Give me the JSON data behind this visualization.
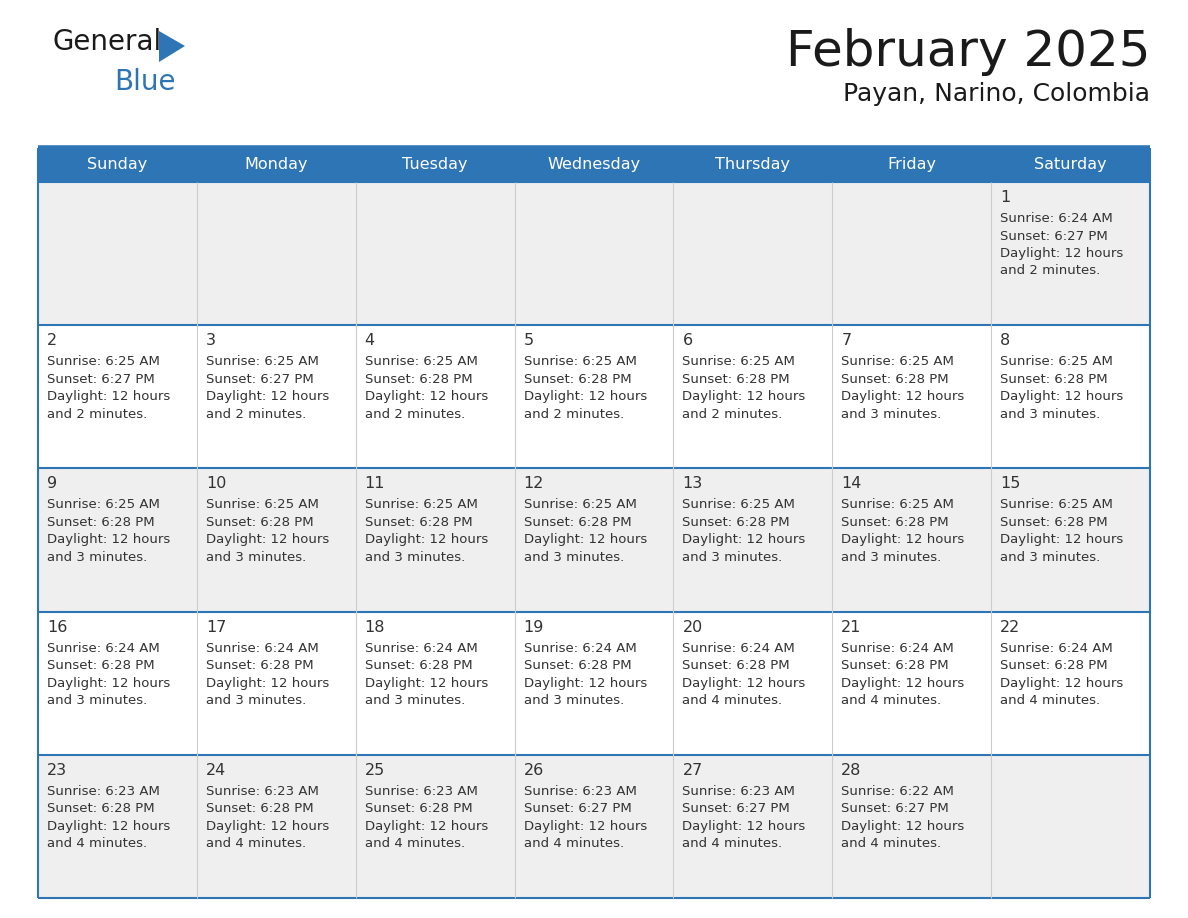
{
  "title": "February 2025",
  "subtitle": "Payan, Narino, Colombia",
  "days_of_week": [
    "Sunday",
    "Monday",
    "Tuesday",
    "Wednesday",
    "Thursday",
    "Friday",
    "Saturday"
  ],
  "header_bg": "#2e75b6",
  "header_text_color": "#ffffff",
  "cell_bg_light": "#efefef",
  "cell_bg_white": "#ffffff",
  "divider_color": "#2e75b6",
  "text_color": "#333333",
  "calendar_data": [
    [
      null,
      null,
      null,
      null,
      null,
      null,
      {
        "day": 1,
        "sunrise": "6:24 AM",
        "sunset": "6:27 PM",
        "daylight": "12 hours and 2 minutes."
      }
    ],
    [
      {
        "day": 2,
        "sunrise": "6:25 AM",
        "sunset": "6:27 PM",
        "daylight": "12 hours and 2 minutes."
      },
      {
        "day": 3,
        "sunrise": "6:25 AM",
        "sunset": "6:27 PM",
        "daylight": "12 hours and 2 minutes."
      },
      {
        "day": 4,
        "sunrise": "6:25 AM",
        "sunset": "6:28 PM",
        "daylight": "12 hours and 2 minutes."
      },
      {
        "day": 5,
        "sunrise": "6:25 AM",
        "sunset": "6:28 PM",
        "daylight": "12 hours and 2 minutes."
      },
      {
        "day": 6,
        "sunrise": "6:25 AM",
        "sunset": "6:28 PM",
        "daylight": "12 hours and 2 minutes."
      },
      {
        "day": 7,
        "sunrise": "6:25 AM",
        "sunset": "6:28 PM",
        "daylight": "12 hours and 3 minutes."
      },
      {
        "day": 8,
        "sunrise": "6:25 AM",
        "sunset": "6:28 PM",
        "daylight": "12 hours and 3 minutes."
      }
    ],
    [
      {
        "day": 9,
        "sunrise": "6:25 AM",
        "sunset": "6:28 PM",
        "daylight": "12 hours and 3 minutes."
      },
      {
        "day": 10,
        "sunrise": "6:25 AM",
        "sunset": "6:28 PM",
        "daylight": "12 hours and 3 minutes."
      },
      {
        "day": 11,
        "sunrise": "6:25 AM",
        "sunset": "6:28 PM",
        "daylight": "12 hours and 3 minutes."
      },
      {
        "day": 12,
        "sunrise": "6:25 AM",
        "sunset": "6:28 PM",
        "daylight": "12 hours and 3 minutes."
      },
      {
        "day": 13,
        "sunrise": "6:25 AM",
        "sunset": "6:28 PM",
        "daylight": "12 hours and 3 minutes."
      },
      {
        "day": 14,
        "sunrise": "6:25 AM",
        "sunset": "6:28 PM",
        "daylight": "12 hours and 3 minutes."
      },
      {
        "day": 15,
        "sunrise": "6:25 AM",
        "sunset": "6:28 PM",
        "daylight": "12 hours and 3 minutes."
      }
    ],
    [
      {
        "day": 16,
        "sunrise": "6:24 AM",
        "sunset": "6:28 PM",
        "daylight": "12 hours and 3 minutes."
      },
      {
        "day": 17,
        "sunrise": "6:24 AM",
        "sunset": "6:28 PM",
        "daylight": "12 hours and 3 minutes."
      },
      {
        "day": 18,
        "sunrise": "6:24 AM",
        "sunset": "6:28 PM",
        "daylight": "12 hours and 3 minutes."
      },
      {
        "day": 19,
        "sunrise": "6:24 AM",
        "sunset": "6:28 PM",
        "daylight": "12 hours and 3 minutes."
      },
      {
        "day": 20,
        "sunrise": "6:24 AM",
        "sunset": "6:28 PM",
        "daylight": "12 hours and 4 minutes."
      },
      {
        "day": 21,
        "sunrise": "6:24 AM",
        "sunset": "6:28 PM",
        "daylight": "12 hours and 4 minutes."
      },
      {
        "day": 22,
        "sunrise": "6:24 AM",
        "sunset": "6:28 PM",
        "daylight": "12 hours and 4 minutes."
      }
    ],
    [
      {
        "day": 23,
        "sunrise": "6:23 AM",
        "sunset": "6:28 PM",
        "daylight": "12 hours and 4 minutes."
      },
      {
        "day": 24,
        "sunrise": "6:23 AM",
        "sunset": "6:28 PM",
        "daylight": "12 hours and 4 minutes."
      },
      {
        "day": 25,
        "sunrise": "6:23 AM",
        "sunset": "6:28 PM",
        "daylight": "12 hours and 4 minutes."
      },
      {
        "day": 26,
        "sunrise": "6:23 AM",
        "sunset": "6:27 PM",
        "daylight": "12 hours and 4 minutes."
      },
      {
        "day": 27,
        "sunrise": "6:23 AM",
        "sunset": "6:27 PM",
        "daylight": "12 hours and 4 minutes."
      },
      {
        "day": 28,
        "sunrise": "6:22 AM",
        "sunset": "6:27 PM",
        "daylight": "12 hours and 4 minutes."
      },
      null
    ]
  ],
  "logo_general_color": "#1a1a1a",
  "logo_blue_color": "#2e75b6",
  "logo_triangle_color": "#2e75b6"
}
